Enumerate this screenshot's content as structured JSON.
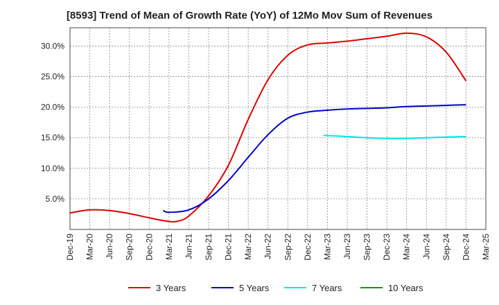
{
  "chart_data": {
    "type": "line",
    "title": "[8593]  Trend of Mean of Growth Rate (YoY) of 12Mo Mov Sum of Revenues",
    "xlabel": "",
    "ylabel": "",
    "ylim": [
      0,
      33
    ],
    "x_ticks": [
      "Dec-19",
      "Mar-20",
      "Jun-20",
      "Sep-20",
      "Dec-20",
      "Mar-21",
      "Jun-21",
      "Sep-21",
      "Dec-21",
      "Mar-22",
      "Jun-22",
      "Sep-22",
      "Dec-22",
      "Mar-23",
      "Jun-23",
      "Sep-23",
      "Dec-23",
      "Mar-24",
      "Jun-24",
      "Sep-24",
      "Dec-24",
      "Mar-25"
    ],
    "y_ticks": [
      {
        "value": 5,
        "label": "5.0%"
      },
      {
        "value": 10,
        "label": "10.0%"
      },
      {
        "value": 15,
        "label": "15.0%"
      },
      {
        "value": 20,
        "label": "20.0%"
      },
      {
        "value": 25,
        "label": "25.0%"
      },
      {
        "value": 30,
        "label": "30.0%"
      }
    ],
    "grid": true,
    "legend_position": "bottom",
    "series": [
      {
        "name": "3 Years",
        "color": "#dd0000",
        "points": [
          [
            0,
            2.7
          ],
          [
            1,
            3.2
          ],
          [
            2,
            3.1
          ],
          [
            3,
            2.6
          ],
          [
            4,
            1.9
          ],
          [
            5,
            1.3
          ],
          [
            5.5,
            1.4
          ],
          [
            6,
            2.2
          ],
          [
            7,
            5.5
          ],
          [
            8,
            10.5
          ],
          [
            9,
            18.0
          ],
          [
            10,
            24.5
          ],
          [
            11,
            28.5
          ],
          [
            12,
            30.2
          ],
          [
            13,
            30.5
          ],
          [
            14,
            30.8
          ],
          [
            15,
            31.2
          ],
          [
            16,
            31.6
          ],
          [
            17,
            32.1
          ],
          [
            18,
            31.5
          ],
          [
            19,
            29.0
          ],
          [
            20,
            24.3
          ]
        ]
      },
      {
        "name": "5 Years",
        "color": "#0000cc",
        "points": [
          [
            4.7,
            3.1
          ],
          [
            5,
            2.8
          ],
          [
            6,
            3.2
          ],
          [
            7,
            5.0
          ],
          [
            8,
            8.0
          ],
          [
            9,
            11.8
          ],
          [
            10,
            15.5
          ],
          [
            11,
            18.2
          ],
          [
            12,
            19.2
          ],
          [
            13,
            19.5
          ],
          [
            14,
            19.7
          ],
          [
            15,
            19.8
          ],
          [
            16,
            19.9
          ],
          [
            17,
            20.1
          ],
          [
            18,
            20.2
          ],
          [
            19,
            20.3
          ],
          [
            20,
            20.4
          ]
        ]
      },
      {
        "name": "7 Years",
        "color": "#00e5e5",
        "points": [
          [
            12.8,
            15.4
          ],
          [
            14,
            15.2
          ],
          [
            15,
            15.0
          ],
          [
            16,
            14.9
          ],
          [
            17,
            14.9
          ],
          [
            18,
            15.0
          ],
          [
            19,
            15.1
          ],
          [
            20,
            15.2
          ]
        ]
      },
      {
        "name": "10 Years",
        "color": "#228b22",
        "points": []
      }
    ]
  }
}
